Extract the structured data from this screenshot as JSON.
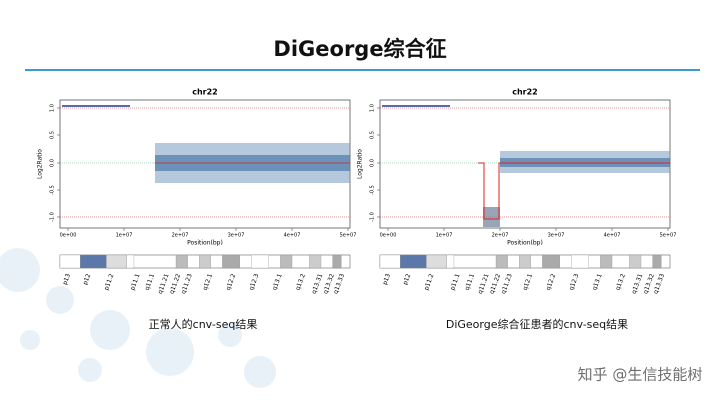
{
  "header": {
    "title": "DiGeorge综合征"
  },
  "panels": [
    {
      "chart_title": "chr22",
      "y_label": "Log2Ratio",
      "x_label": "Position(bp)",
      "y_ticks": [
        "1.0",
        "0.5",
        "0.0",
        "-0.5",
        "-1.0"
      ],
      "x_ticks": [
        "0e+00",
        "1e+07",
        "2e+07",
        "3e+07",
        "4e+07",
        "5e+07"
      ],
      "bands": [
        "p13",
        "p12",
        "p11.2",
        "p11.1",
        "q11.1",
        "q11.21",
        "q11.22",
        "q11.23",
        "q12.1",
        "q12.2",
        "q12.3",
        "q13.1",
        "q13.2",
        "q13.31",
        "q13.32",
        "q13.33"
      ],
      "caption": "正常人的cnv-seq结果"
    },
    {
      "chart_title": "chr22",
      "y_label": "Log2Ratio",
      "x_label": "Position(bp)",
      "y_ticks": [
        "1.0",
        "0.5",
        "0.0",
        "-0.5",
        "-1.0"
      ],
      "x_ticks": [
        "0e+00",
        "1e+07",
        "2e+07",
        "3e+07",
        "4e+07",
        "5e+07"
      ],
      "bands": [
        "p13",
        "p12",
        "p11.2",
        "p11.1",
        "q11.1",
        "q11.21",
        "q11.22",
        "q11.23",
        "q12.1",
        "q12.2",
        "q12.3",
        "q13.1",
        "q13.2",
        "q13.31",
        "q13.32",
        "q13.33"
      ],
      "caption": "DiGeorge综合征患者的cnv-seq结果"
    }
  ],
  "watermark": "知乎 @生信技能树"
}
